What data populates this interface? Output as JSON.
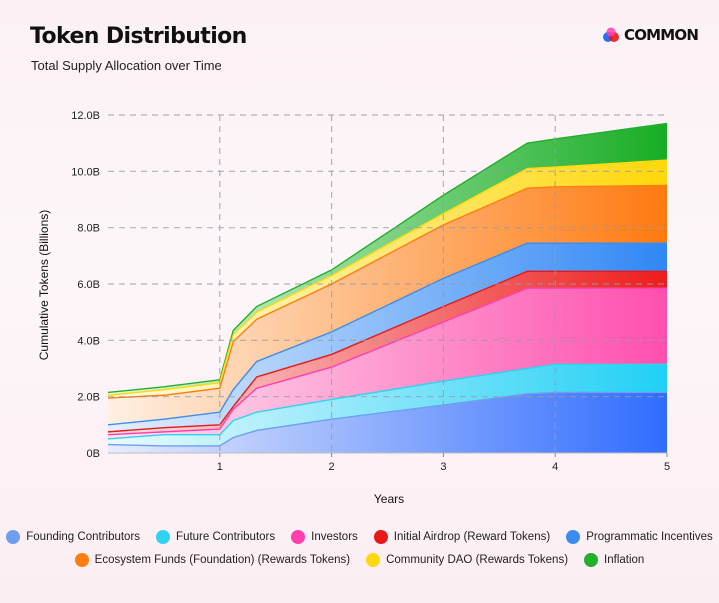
{
  "header": {
    "title": "Token Distribution",
    "subtitle": "Total Supply Allocation over Time",
    "logo_text": "COMMON"
  },
  "colors": {
    "founding": "#6f9ef0",
    "future": "#2fd3f0",
    "investors": "#ff3fae",
    "airdrop": "#e81818",
    "programmatic": "#3b8cf0",
    "ecosystem": "#ff7d14",
    "community": "#ffd90f",
    "inflation": "#22b02c"
  },
  "chart_data": {
    "type": "area",
    "stacked": true,
    "title": "Token Distribution",
    "subtitle": "Total Supply Allocation over Time",
    "xlabel": "Years",
    "ylabel": "Cumulative Tokens (Billions)",
    "xlim": [
      0,
      5
    ],
    "ylim": [
      0,
      12
    ],
    "xticks": [
      1,
      2,
      3,
      4,
      5
    ],
    "yticks": [
      0,
      2,
      4,
      6,
      8,
      10,
      12
    ],
    "ytick_labels": [
      "0B",
      "2.0B",
      "4.0B",
      "6.0B",
      "8.0B",
      "10.0B",
      "12.0B"
    ],
    "grid": true,
    "legend_position": "bottom",
    "series": [
      {
        "name": "Founding Contributors",
        "color_key": "founding",
        "points": [
          [
            0,
            0.3
          ],
          [
            0.5,
            0.25
          ],
          [
            1,
            0.25
          ],
          [
            1.12,
            0.55
          ],
          [
            1.33,
            0.8
          ],
          [
            2,
            1.2
          ],
          [
            3,
            1.7
          ],
          [
            3.75,
            2.1
          ],
          [
            4,
            2.15
          ],
          [
            5,
            2.15
          ]
        ]
      },
      {
        "name": "Future Contributors",
        "color_key": "future",
        "points": [
          [
            0,
            0.5
          ],
          [
            0.5,
            0.65
          ],
          [
            1,
            0.65
          ],
          [
            1.12,
            1.15
          ],
          [
            1.33,
            1.45
          ],
          [
            2,
            1.9
          ],
          [
            3,
            2.55
          ],
          [
            3.75,
            3.0
          ],
          [
            4,
            3.15
          ],
          [
            5,
            3.15
          ]
        ]
      },
      {
        "name": "Investors",
        "color_key": "investors",
        "points": [
          [
            0,
            0.65
          ],
          [
            0.5,
            0.75
          ],
          [
            1,
            0.85
          ],
          [
            1.12,
            1.55
          ],
          [
            1.33,
            2.3
          ],
          [
            2,
            3.05
          ],
          [
            3,
            4.65
          ],
          [
            3.75,
            5.85
          ],
          [
            4,
            5.85
          ],
          [
            5,
            5.85
          ]
        ]
      },
      {
        "name": "Initial Airdrop (Reward Tokens)",
        "color_key": "airdrop",
        "points": [
          [
            0,
            0.75
          ],
          [
            0.5,
            0.9
          ],
          [
            1,
            1.0
          ],
          [
            1.12,
            1.65
          ],
          [
            1.33,
            2.7
          ],
          [
            2,
            3.5
          ],
          [
            3,
            5.2
          ],
          [
            3.75,
            6.45
          ],
          [
            4,
            6.45
          ],
          [
            5,
            6.45
          ]
        ]
      },
      {
        "name": "Programmatic Incentives",
        "color_key": "programmatic",
        "points": [
          [
            0,
            1.0
          ],
          [
            0.5,
            1.2
          ],
          [
            1,
            1.45
          ],
          [
            1.12,
            2.25
          ],
          [
            1.33,
            3.25
          ],
          [
            2,
            4.3
          ],
          [
            3,
            6.2
          ],
          [
            3.75,
            7.45
          ],
          [
            4,
            7.45
          ],
          [
            5,
            7.45
          ]
        ]
      },
      {
        "name": "Ecosystem Funds (Foundation) (Rewards Tokens)",
        "color_key": "ecosystem",
        "points": [
          [
            0,
            1.95
          ],
          [
            0.5,
            2.05
          ],
          [
            1,
            2.3
          ],
          [
            1.12,
            3.95
          ],
          [
            1.33,
            4.75
          ],
          [
            2,
            6.0
          ],
          [
            3,
            8.1
          ],
          [
            3.75,
            9.4
          ],
          [
            4,
            9.45
          ],
          [
            5,
            9.5
          ]
        ]
      },
      {
        "name": "Community DAO (Rewards Tokens)",
        "color_key": "community",
        "points": [
          [
            0,
            2.05
          ],
          [
            0.5,
            2.25
          ],
          [
            1,
            2.5
          ],
          [
            1.12,
            4.2
          ],
          [
            1.33,
            5.0
          ],
          [
            2,
            6.3
          ],
          [
            3,
            8.5
          ],
          [
            3.75,
            10.1
          ],
          [
            4,
            10.15
          ],
          [
            5,
            10.4
          ]
        ]
      },
      {
        "name": "Inflation",
        "color_key": "inflation",
        "points": [
          [
            0,
            2.15
          ],
          [
            0.5,
            2.35
          ],
          [
            1,
            2.6
          ],
          [
            1.12,
            4.35
          ],
          [
            1.33,
            5.2
          ],
          [
            2,
            6.5
          ],
          [
            3,
            9.15
          ],
          [
            3.75,
            11.0
          ],
          [
            4,
            11.15
          ],
          [
            5,
            11.7
          ]
        ]
      }
    ]
  },
  "legend": {
    "rows": [
      [
        {
          "label": "Founding Contributors",
          "color_key": "founding"
        },
        {
          "label": "Future Contributors",
          "color_key": "future"
        },
        {
          "label": "Investors",
          "color_key": "investors"
        },
        {
          "label": "Initial Airdrop (Reward Tokens)",
          "color_key": "airdrop"
        },
        {
          "label": "Programmatic Incentives",
          "color_key": "programmatic"
        }
      ],
      [
        {
          "label": "Ecosystem Funds (Foundation) (Rewards Tokens)",
          "color_key": "ecosystem"
        },
        {
          "label": "Community DAO (Rewards Tokens)",
          "color_key": "community"
        },
        {
          "label": "Inflation",
          "color_key": "inflation"
        }
      ]
    ]
  }
}
